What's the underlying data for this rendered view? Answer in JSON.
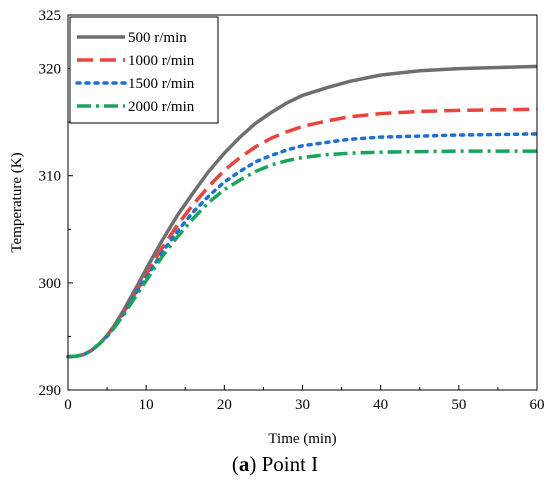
{
  "caption": {
    "letter": "a",
    "text": "Point I"
  },
  "chart_data": {
    "type": "line",
    "xlabel": "Time (min)",
    "ylabel": "Temperature (K)",
    "xlim": [
      0,
      60
    ],
    "ylim": [
      290,
      325
    ],
    "xticks": [
      0,
      10,
      20,
      30,
      40,
      50,
      60
    ],
    "yticks": [
      290,
      300,
      310,
      320,
      325
    ],
    "grid": false,
    "legend_position": "top-left",
    "x": [
      0,
      1,
      2,
      3,
      4,
      5,
      6,
      7,
      8,
      9,
      10,
      12,
      14,
      16,
      18,
      20,
      22,
      24,
      26,
      28,
      30,
      33,
      36,
      40,
      45,
      50,
      55,
      60
    ],
    "series": [
      {
        "name": "500 r/min",
        "color": "#6e6e6e",
        "dash": "solid",
        "values": [
          293.1,
          293.15,
          293.3,
          293.7,
          294.3,
          295.1,
          296.1,
          297.3,
          298.6,
          299.9,
          301.3,
          303.9,
          306.3,
          308.4,
          310.4,
          312.1,
          313.6,
          314.9,
          315.9,
          316.8,
          317.5,
          318.2,
          318.8,
          319.4,
          319.8,
          320.0,
          320.1,
          320.2
        ]
      },
      {
        "name": "1000 r/min",
        "color": "#e8453c",
        "dash": "longdash",
        "values": [
          293.1,
          293.15,
          293.3,
          293.7,
          294.3,
          295.1,
          296.0,
          297.1,
          298.3,
          299.5,
          300.8,
          303.2,
          305.4,
          307.3,
          309.0,
          310.5,
          311.7,
          312.7,
          313.5,
          314.1,
          314.6,
          315.1,
          315.5,
          315.8,
          316.0,
          316.1,
          316.15,
          316.2
        ]
      },
      {
        "name": "1500 r/min",
        "color": "#1f6fd1",
        "dash": "dot",
        "values": [
          293.1,
          293.15,
          293.3,
          293.7,
          294.3,
          295.0,
          295.9,
          297.0,
          298.2,
          299.4,
          300.5,
          302.8,
          304.8,
          306.6,
          308.1,
          309.4,
          310.4,
          311.3,
          311.9,
          312.4,
          312.8,
          313.1,
          313.4,
          313.6,
          313.7,
          313.8,
          313.85,
          313.9
        ]
      },
      {
        "name": "2000 r/min",
        "color": "#1aa35c",
        "dash": "dashdot",
        "values": [
          293.1,
          293.15,
          293.3,
          293.7,
          294.3,
          295.0,
          295.9,
          296.9,
          298.0,
          299.1,
          300.2,
          302.4,
          304.3,
          306.0,
          307.5,
          308.7,
          309.6,
          310.4,
          311.0,
          311.4,
          311.7,
          311.95,
          312.1,
          312.2,
          312.25,
          312.3,
          312.3,
          312.3
        ]
      }
    ]
  }
}
